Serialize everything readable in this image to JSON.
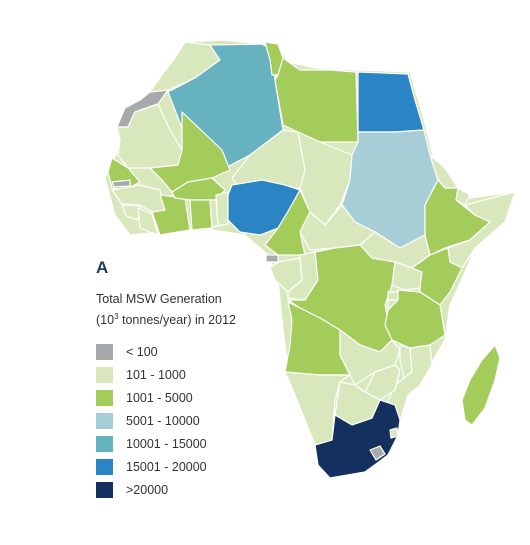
{
  "panel_label": "A",
  "legend": {
    "title_line1": "Total MSW Generation",
    "title_base": "(10",
    "title_sup": "3",
    "title_rest": " tonnes/year) in 2012",
    "items": [
      {
        "label": "< 100",
        "color": "#a8a9ab"
      },
      {
        "label": "101 - 1000",
        "color": "#d9e7bd"
      },
      {
        "label": "1001 - 5000",
        "color": "#a3cc5a"
      },
      {
        "label": "5001 - 10000",
        "color": "#a7cdd6"
      },
      {
        "label": "10001 - 15000",
        "color": "#66b3bf"
      },
      {
        "label": "15001 - 20000",
        "color": "#2b84c4"
      },
      {
        "label": ">20000",
        "color": "#14305e"
      }
    ]
  },
  "map": {
    "countries": [
      {
        "name": "Morocco",
        "category": 1
      },
      {
        "name": "Western Sahara",
        "category": 0
      },
      {
        "name": "Mauritania",
        "category": 1
      },
      {
        "name": "Algeria",
        "category": 4
      },
      {
        "name": "Tunisia",
        "category": 2
      },
      {
        "name": "Libya",
        "category": 2
      },
      {
        "name": "Egypt",
        "category": 5
      },
      {
        "name": "Mali",
        "category": 2
      },
      {
        "name": "Niger",
        "category": 1
      },
      {
        "name": "Chad",
        "category": 1
      },
      {
        "name": "Sudan",
        "category": 3
      },
      {
        "name": "Senegal",
        "category": 2
      },
      {
        "name": "Gambia",
        "category": 0
      },
      {
        "name": "Guinea",
        "category": 1
      },
      {
        "name": "Sierra Leone",
        "category": 1
      },
      {
        "name": "Liberia",
        "category": 1
      },
      {
        "name": "Cote d'Ivoire",
        "category": 2
      },
      {
        "name": "Burkina Faso",
        "category": 2
      },
      {
        "name": "Ghana",
        "category": 2
      },
      {
        "name": "Togo",
        "category": 1
      },
      {
        "name": "Benin",
        "category": 1
      },
      {
        "name": "Nigeria",
        "category": 5
      },
      {
        "name": "Cameroon",
        "category": 2
      },
      {
        "name": "Central African Republic",
        "category": 1
      },
      {
        "name": "South Sudan",
        "category": 1
      },
      {
        "name": "Eritrea",
        "category": 1
      },
      {
        "name": "Djibouti",
        "category": 1
      },
      {
        "name": "Ethiopia",
        "category": 2
      },
      {
        "name": "Somalia",
        "category": 1
      },
      {
        "name": "Equatorial Guinea",
        "category": 0
      },
      {
        "name": "Gabon",
        "category": 1
      },
      {
        "name": "Congo",
        "category": 1
      },
      {
        "name": "DR Congo",
        "category": 2
      },
      {
        "name": "Uganda",
        "category": 1
      },
      {
        "name": "Kenya",
        "category": 2
      },
      {
        "name": "Rwanda",
        "category": 1
      },
      {
        "name": "Burundi",
        "category": 1
      },
      {
        "name": "Tanzania",
        "category": 2
      },
      {
        "name": "Angola",
        "category": 2
      },
      {
        "name": "Zambia",
        "category": 1
      },
      {
        "name": "Malawi",
        "category": 1
      },
      {
        "name": "Mozambique",
        "category": 1
      },
      {
        "name": "Zimbabwe",
        "category": 1
      },
      {
        "name": "Namibia",
        "category": 1
      },
      {
        "name": "Botswana",
        "category": 1
      },
      {
        "name": "South Africa",
        "category": 6
      },
      {
        "name": "Lesotho",
        "category": 0
      },
      {
        "name": "Swaziland",
        "category": 1
      },
      {
        "name": "Madagascar",
        "category": 2
      }
    ]
  }
}
